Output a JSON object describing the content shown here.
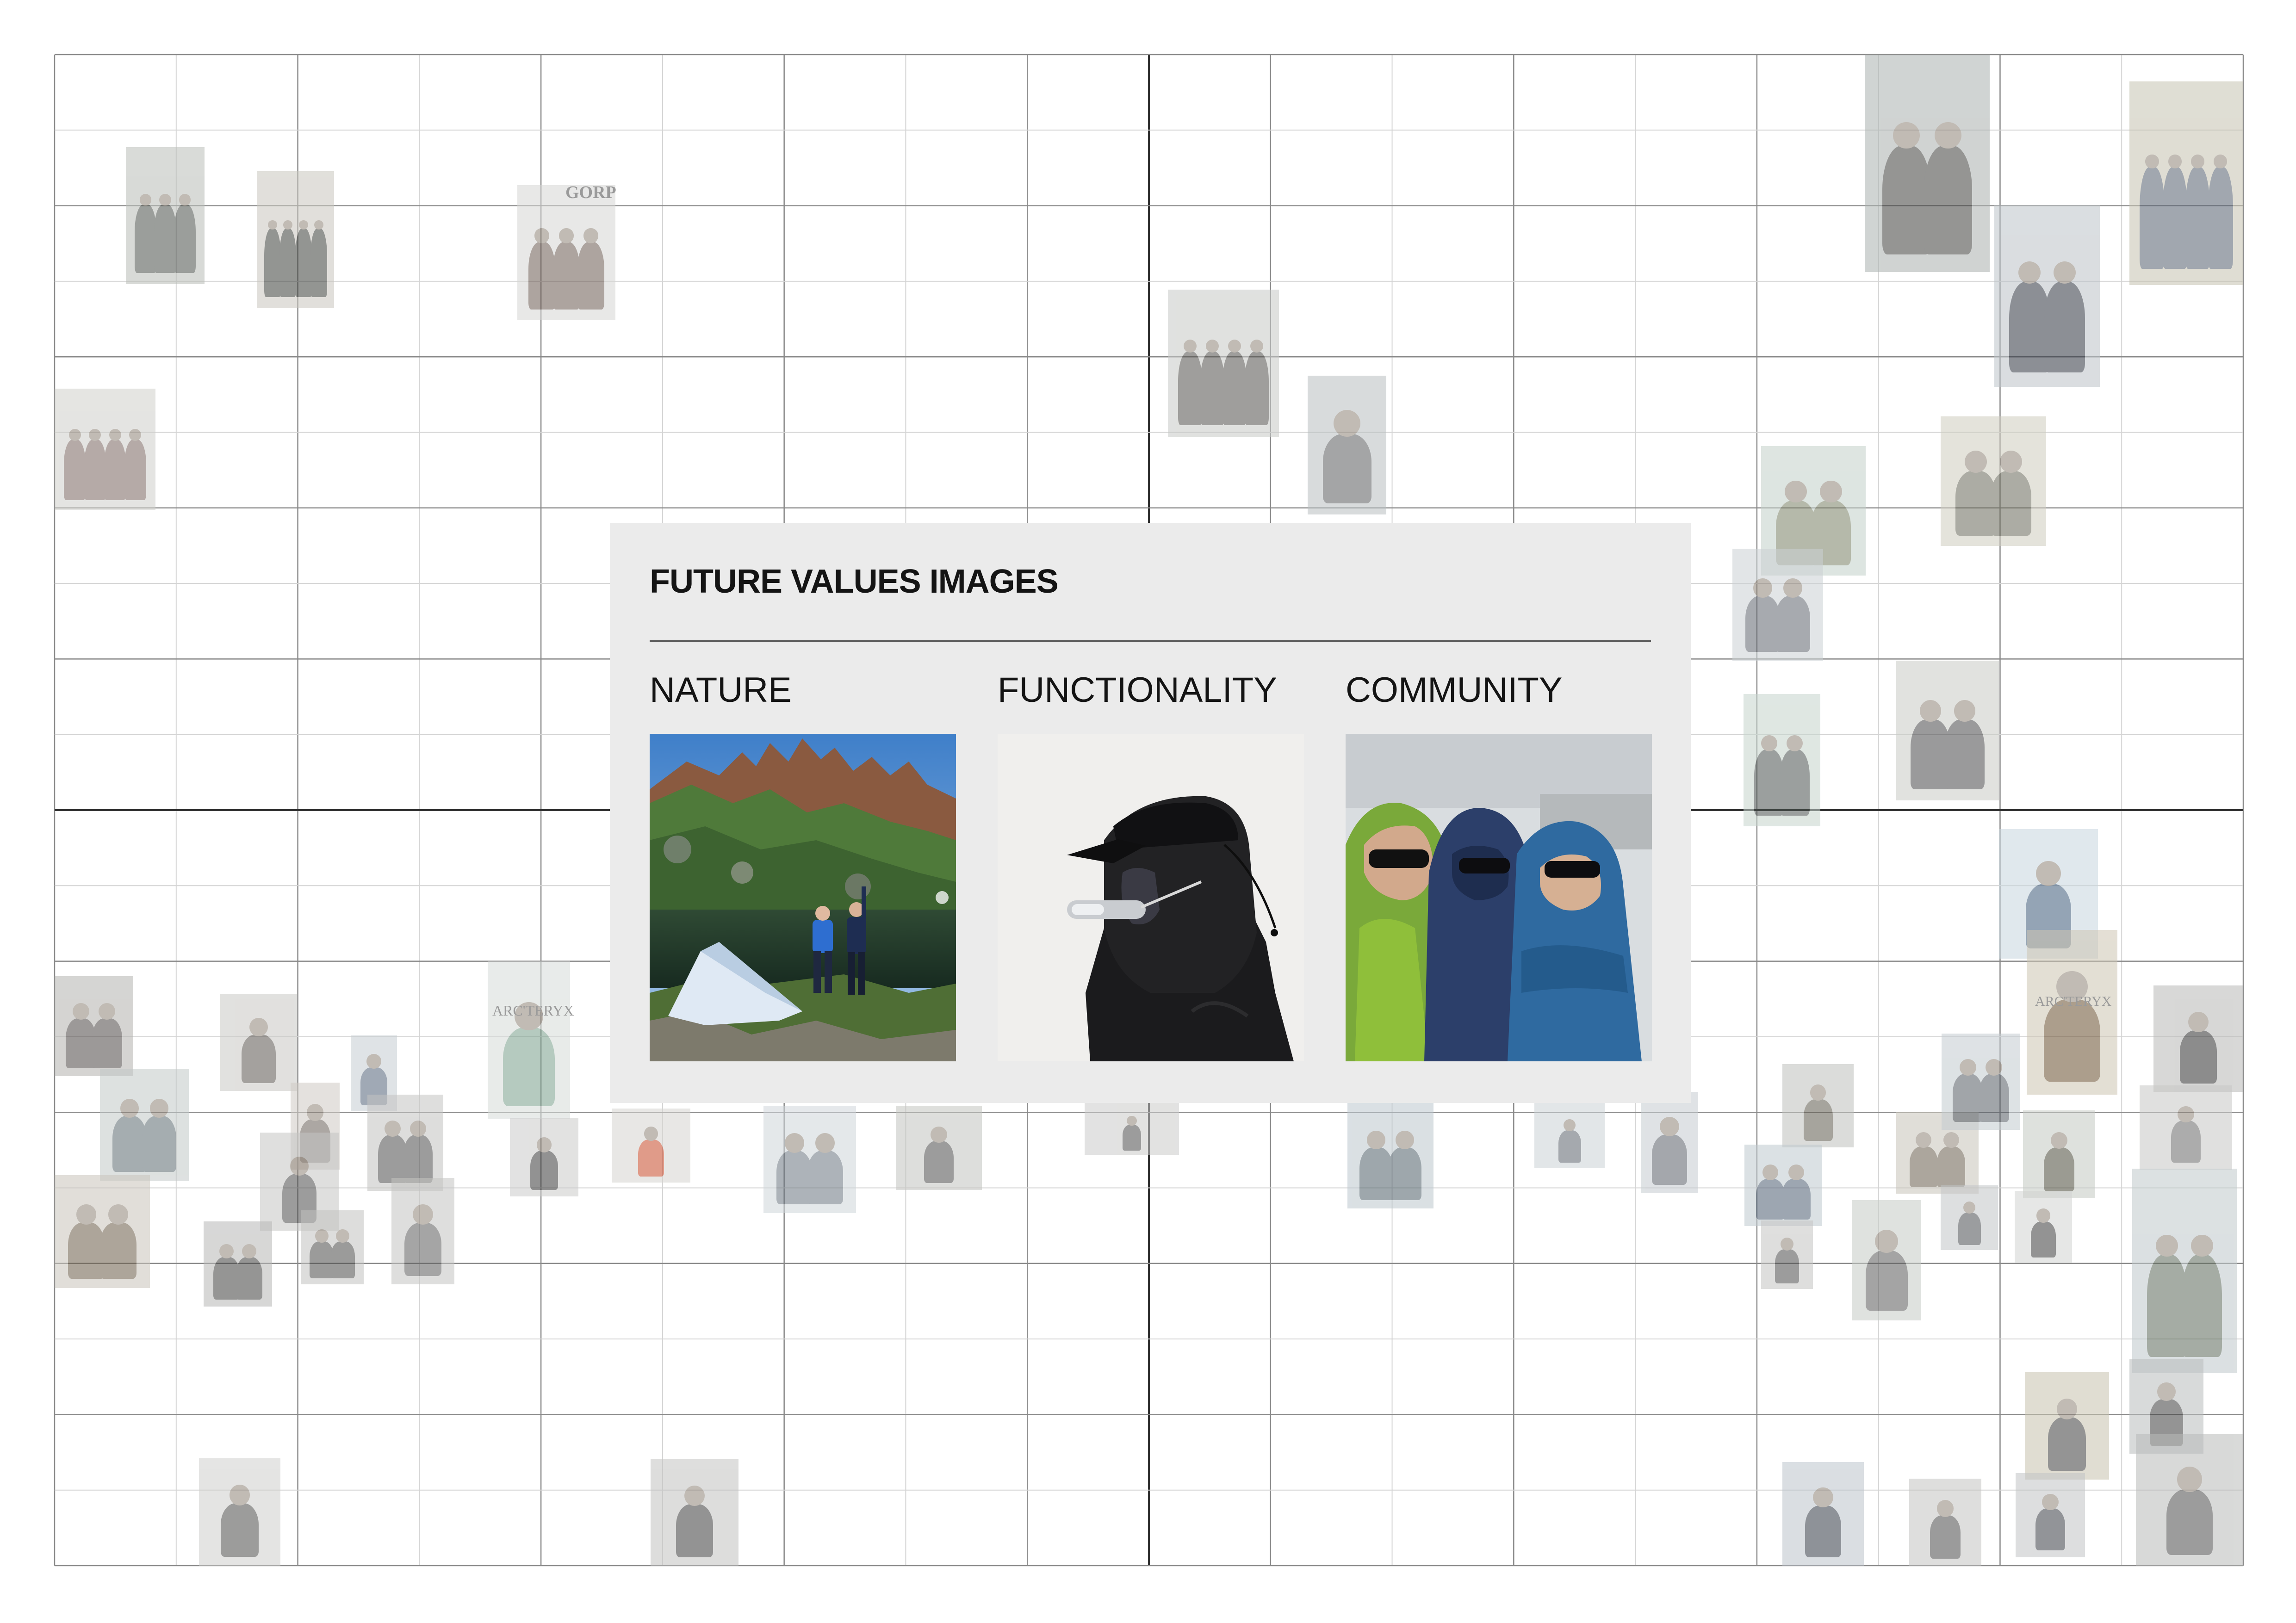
{
  "panel": {
    "title": "FUTURE VALUES IMAGES",
    "categories": [
      {
        "label": "NATURE",
        "photo": "alpine-lake-tent-photo"
      },
      {
        "label": "FUNCTIONALITY",
        "photo": "hooded-jacket-sunglasses-photo"
      },
      {
        "label": "COMMUNITY",
        "photo": "three-people-hooded-jackets-photo"
      }
    ]
  },
  "background_thumbnails": {
    "gorp_text": "GORP",
    "brand_text": "ARC'TERYX"
  },
  "colors": {
    "panel_background": "#ebebeb",
    "grid_major": "#8a8a8a",
    "grid_minor": "#d4d4d4",
    "grid_axis": "#333333",
    "text": "#141414"
  }
}
